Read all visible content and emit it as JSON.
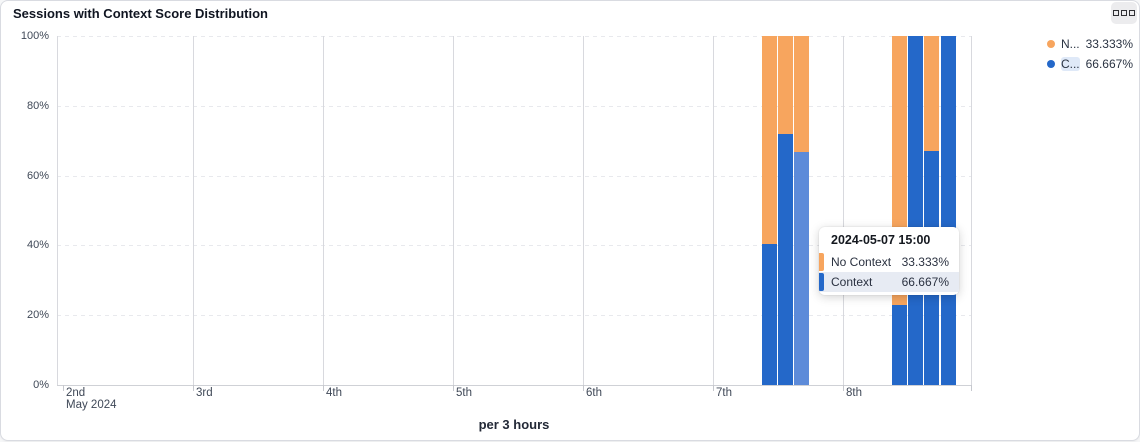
{
  "card": {
    "title": "Sessions with Context Score Distribution",
    "menu_icon": "grid-squares-icon"
  },
  "legend": {
    "items": [
      {
        "abbr": "N...",
        "value": "33.333%",
        "series": "No Context",
        "color": "#f7a55e",
        "highlighted": false
      },
      {
        "abbr": "C...",
        "value": "66.667%",
        "series": "Context",
        "color": "#2468c9",
        "highlighted": true
      }
    ]
  },
  "tooltip": {
    "header": "2024-05-07 15:00",
    "rows": [
      {
        "label": "No Context",
        "value": "33.333%",
        "color": "#f7a55e",
        "highlighted": false
      },
      {
        "label": "Context",
        "value": "66.667%",
        "color": "#2468c9",
        "highlighted": true
      }
    ]
  },
  "chart_data": {
    "type": "bar",
    "stacked": true,
    "percent_stacked": true,
    "title": "Sessions with Context Score Distribution",
    "xlabel": "per 3 hours",
    "ylabel": "",
    "ylim": [
      0,
      100
    ],
    "grid": true,
    "legend_position": "top-right",
    "y_ticks": [
      "0%",
      "20%",
      "40%",
      "60%",
      "80%",
      "100%"
    ],
    "x_ticks": [
      "2nd",
      "3rd",
      "4th",
      "5th",
      "6th",
      "7th",
      "8th"
    ],
    "x_axis_secondary_label": "May 2024",
    "series": [
      {
        "name": "Context",
        "color": "#2468c9"
      },
      {
        "name": "No Context",
        "color": "#f7a55e"
      }
    ],
    "hover_highlight_color": "#5d8bd9",
    "bars": [
      {
        "time": "2024-05-07 09:00",
        "context": 40.5,
        "no_context": 59.5,
        "hovered": false
      },
      {
        "time": "2024-05-07 12:00",
        "context": 72.0,
        "no_context": 28.0,
        "hovered": false
      },
      {
        "time": "2024-05-07 15:00",
        "context": 66.667,
        "no_context": 33.333,
        "hovered": true
      },
      {
        "time": "2024-05-08 09:00",
        "context": 23.0,
        "no_context": 77.0,
        "hovered": false
      },
      {
        "time": "2024-05-08 12:00",
        "context": 100,
        "no_context": 0,
        "hovered": false
      },
      {
        "time": "2024-05-08 15:00",
        "context": 67.0,
        "no_context": 33.0,
        "hovered": false
      },
      {
        "time": "2024-05-08 18:00",
        "context": 100,
        "no_context": 0,
        "hovered": false
      }
    ]
  },
  "colors": {
    "context_blue": "#2468c9",
    "context_blue_hover": "#5d8bd9",
    "no_context_orange": "#f7a55e",
    "grid_dashed": "#e8e9ed",
    "grid_vertical": "#d8d9de",
    "axis_text": "#3f4857",
    "card_border": "#d9dbe1",
    "tooltip_row_highlight": "#e7ebf3"
  }
}
